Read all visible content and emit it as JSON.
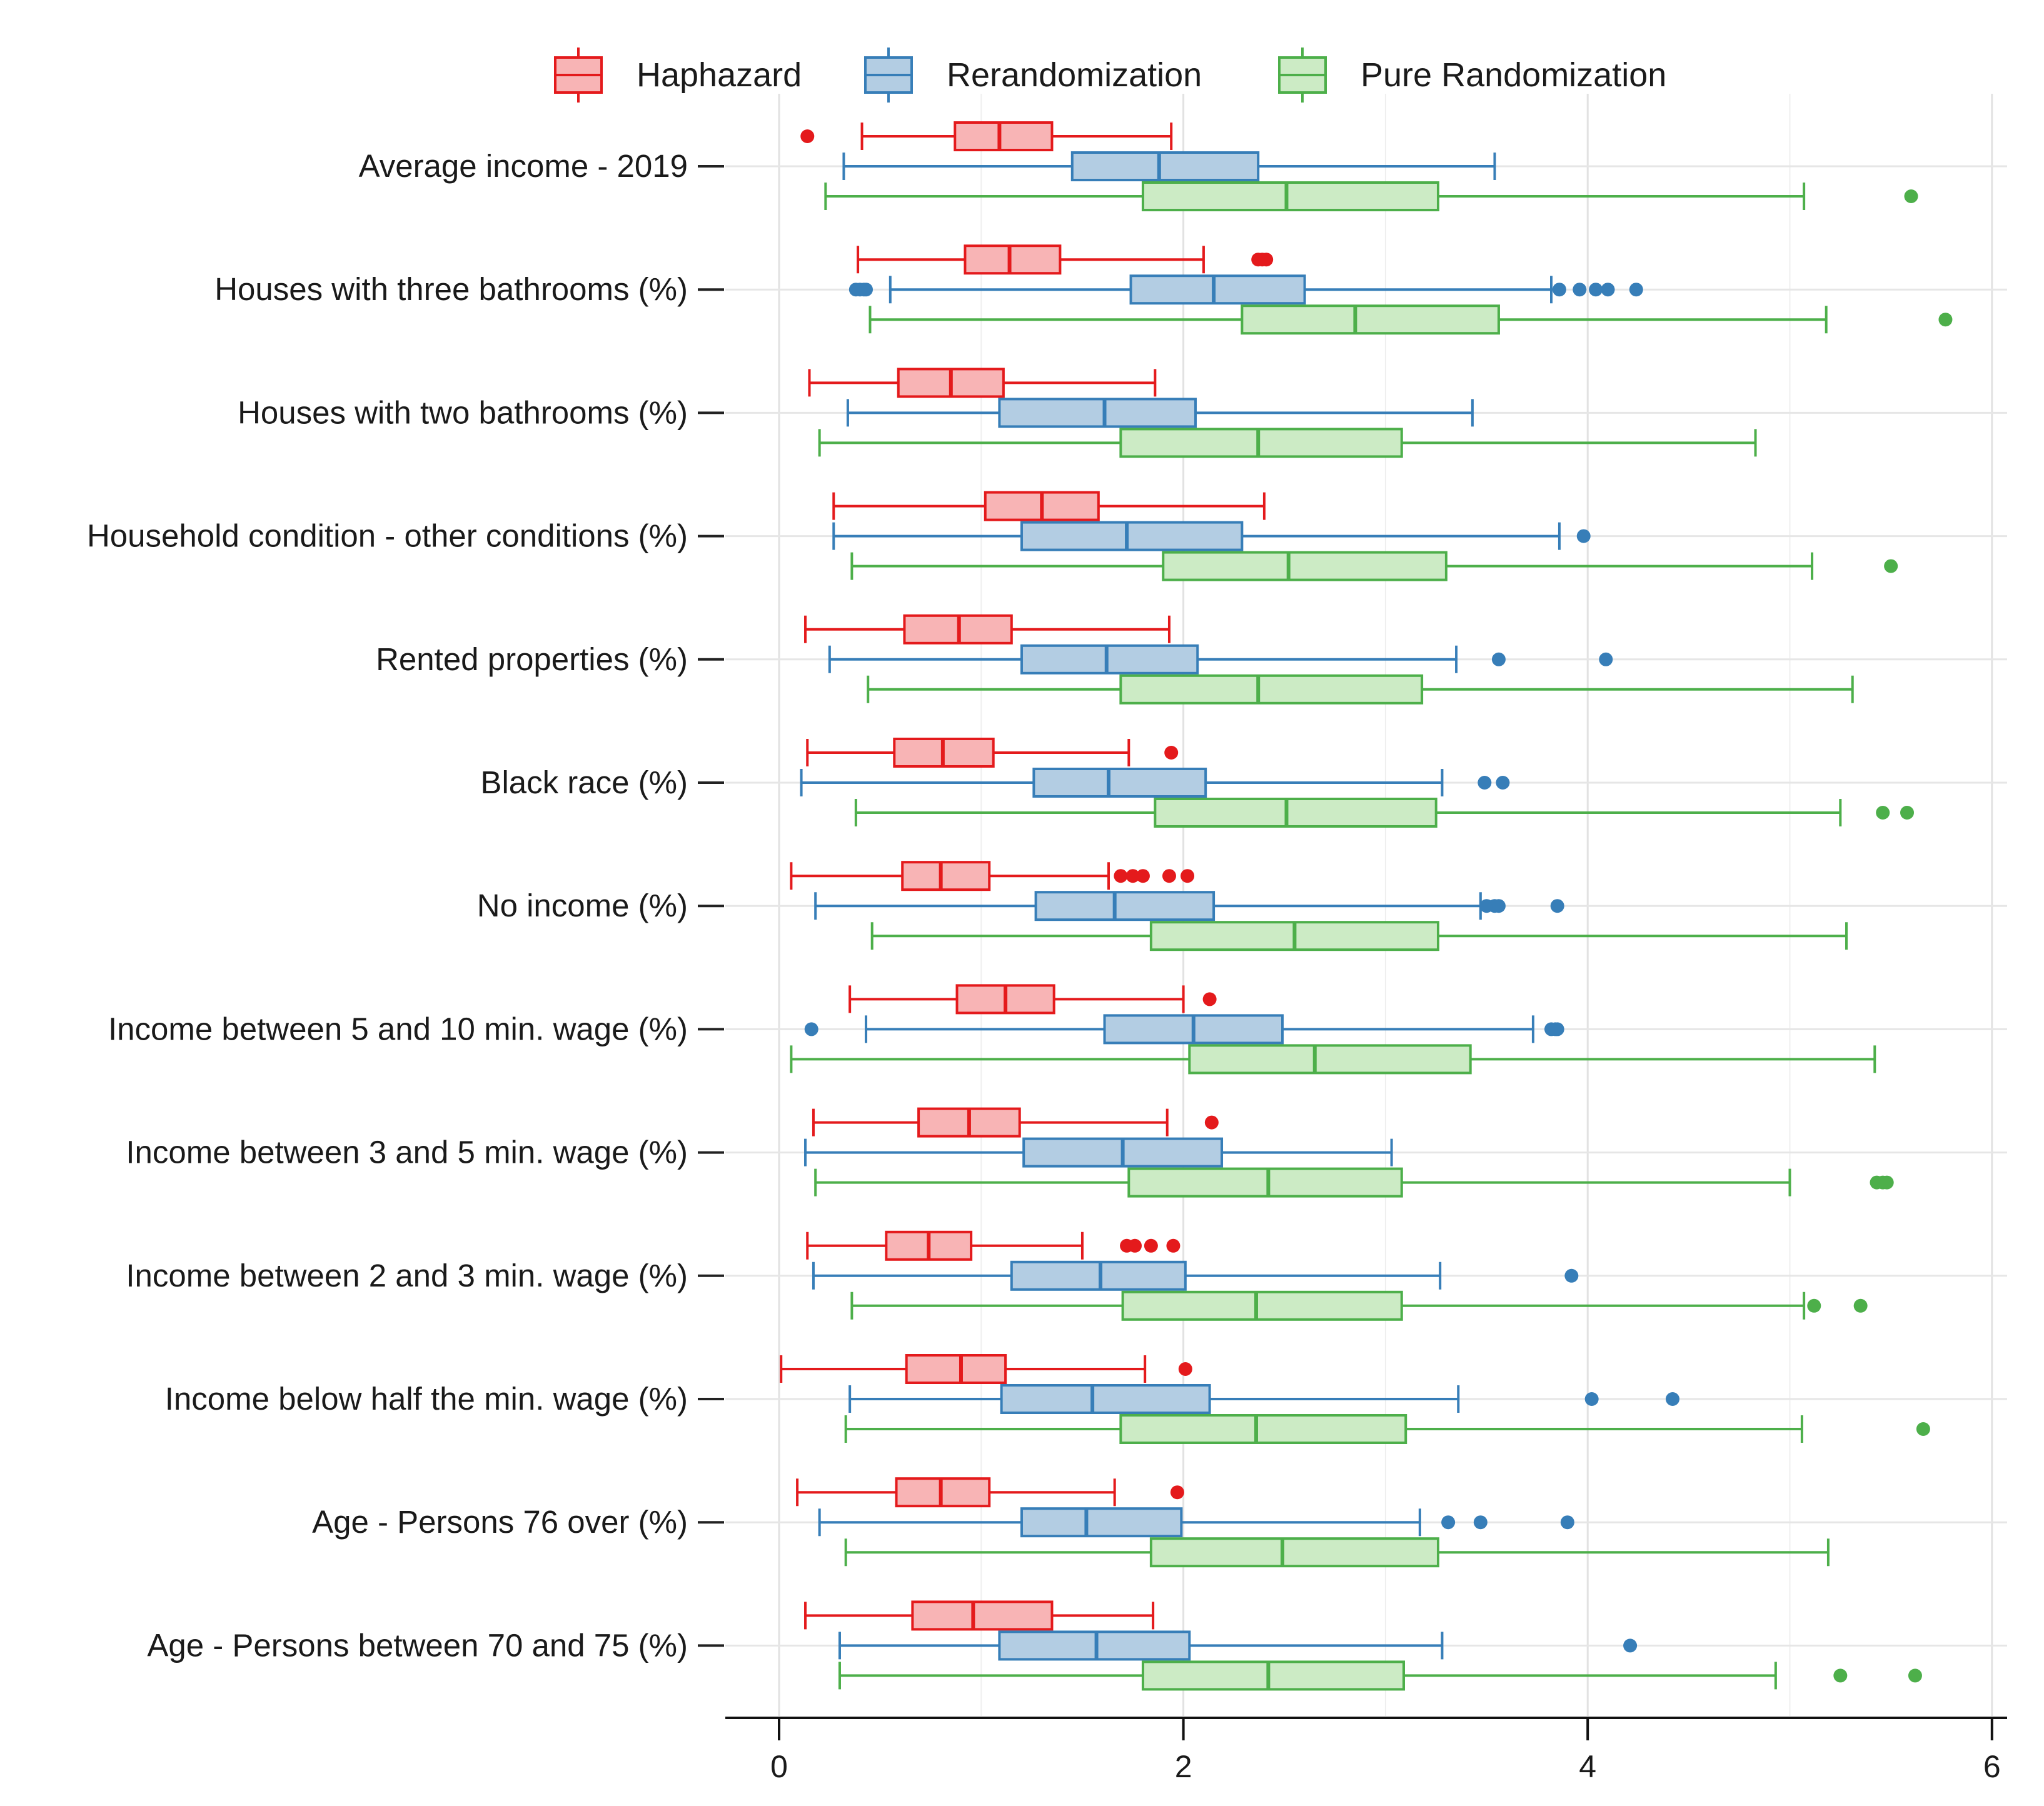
{
  "chart_data": {
    "type": "boxplot",
    "orientation": "horizontal",
    "title": "",
    "xlabel": "",
    "ylabel": "",
    "xlim": [
      0,
      6
    ],
    "xticks": [
      "0",
      "2",
      "4",
      "6"
    ],
    "xtick_values": [
      0,
      2,
      4,
      6
    ],
    "grid": true,
    "legend_position": "top",
    "legend": [
      "Haphazard",
      "Rerandomization",
      "Pure Randomization"
    ],
    "series_colors": {
      "Haphazard": {
        "stroke": "#e41a1c",
        "fill": "#f8b4b5"
      },
      "Rerandomization": {
        "stroke": "#377eb8",
        "fill": "#b3cde3"
      },
      "Pure Randomization": {
        "stroke": "#4daf4a",
        "fill": "#ccebc5"
      }
    },
    "categories": [
      "Average income - 2019",
      "Houses with three bathrooms (%)",
      "Houses with two bathrooms (%)",
      "Household condition - other conditions (%)",
      "Rented properties (%)",
      "Black race (%)",
      "No income (%)",
      "Income between 5 and 10 min. wage (%)",
      "Income between 3 and 5 min. wage (%)",
      "Income between 2 and 3 min. wage (%)",
      "Income below half the min. wage (%)",
      "Age - Persons 76 over (%)",
      "Age - Persons between 70 and 75 (%)"
    ],
    "series": [
      {
        "name": "Haphazard",
        "boxes": [
          {
            "whislo": 0.41,
            "q1": 0.87,
            "med": 1.09,
            "q3": 1.35,
            "whishi": 1.94,
            "outliers": [
              0.14
            ]
          },
          {
            "whislo": 0.39,
            "q1": 0.92,
            "med": 1.14,
            "q3": 1.39,
            "whishi": 2.1,
            "outliers": [
              2.37,
              2.39,
              2.41
            ]
          },
          {
            "whislo": 0.15,
            "q1": 0.59,
            "med": 0.85,
            "q3": 1.11,
            "whishi": 1.86,
            "outliers": []
          },
          {
            "whislo": 0.27,
            "q1": 1.02,
            "med": 1.3,
            "q3": 1.58,
            "whishi": 2.4,
            "outliers": []
          },
          {
            "whislo": 0.13,
            "q1": 0.62,
            "med": 0.89,
            "q3": 1.15,
            "whishi": 1.93,
            "outliers": []
          },
          {
            "whislo": 0.14,
            "q1": 0.57,
            "med": 0.81,
            "q3": 1.06,
            "whishi": 1.73,
            "outliers": [
              1.94
            ]
          },
          {
            "whislo": 0.06,
            "q1": 0.61,
            "med": 0.8,
            "q3": 1.04,
            "whishi": 1.63,
            "outliers": [
              1.69,
              1.75,
              1.8,
              1.93,
              2.02
            ]
          },
          {
            "whislo": 0.35,
            "q1": 0.88,
            "med": 1.12,
            "q3": 1.36,
            "whishi": 2.0,
            "outliers": [
              2.13
            ]
          },
          {
            "whislo": 0.17,
            "q1": 0.69,
            "med": 0.94,
            "q3": 1.19,
            "whishi": 1.92,
            "outliers": [
              2.14
            ]
          },
          {
            "whislo": 0.14,
            "q1": 0.53,
            "med": 0.74,
            "q3": 0.95,
            "whishi": 1.5,
            "outliers": [
              1.72,
              1.76,
              1.84,
              1.95
            ]
          },
          {
            "whislo": 0.01,
            "q1": 0.63,
            "med": 0.9,
            "q3": 1.12,
            "whishi": 1.81,
            "outliers": [
              2.01
            ]
          },
          {
            "whislo": 0.09,
            "q1": 0.58,
            "med": 0.8,
            "q3": 1.04,
            "whishi": 1.66,
            "outliers": [
              1.97
            ]
          },
          {
            "whislo": 0.13,
            "q1": 0.66,
            "med": 0.96,
            "q3": 1.35,
            "whishi": 1.85,
            "outliers": []
          }
        ]
      },
      {
        "name": "Rerandomization",
        "boxes": [
          {
            "whislo": 0.32,
            "q1": 1.45,
            "med": 1.88,
            "q3": 2.37,
            "whishi": 3.54,
            "outliers": []
          },
          {
            "whislo": 0.55,
            "q1": 1.74,
            "med": 2.15,
            "q3": 2.6,
            "whishi": 3.82,
            "outliers": [
              0.38,
              0.4,
              0.42,
              0.43,
              3.86,
              3.96,
              4.04,
              4.1,
              4.24
            ]
          },
          {
            "whislo": 0.34,
            "q1": 1.09,
            "med": 1.61,
            "q3": 2.06,
            "whishi": 3.43,
            "outliers": []
          },
          {
            "whislo": 0.27,
            "q1": 1.2,
            "med": 1.72,
            "q3": 2.29,
            "whishi": 3.86,
            "outliers": [
              3.98
            ]
          },
          {
            "whislo": 0.25,
            "q1": 1.2,
            "med": 1.62,
            "q3": 2.07,
            "whishi": 3.35,
            "outliers": [
              3.56,
              4.09
            ]
          },
          {
            "whislo": 0.11,
            "q1": 1.26,
            "med": 1.63,
            "q3": 2.11,
            "whishi": 3.28,
            "outliers": [
              3.49,
              3.58
            ]
          },
          {
            "whislo": 0.18,
            "q1": 1.27,
            "med": 1.66,
            "q3": 2.15,
            "whishi": 3.47,
            "outliers": [
              3.5,
              3.54,
              3.56,
              3.85
            ]
          },
          {
            "whislo": 0.43,
            "q1": 1.61,
            "med": 2.05,
            "q3": 2.49,
            "whishi": 3.73,
            "outliers": [
              0.16,
              3.82,
              3.84,
              3.85
            ]
          },
          {
            "whislo": 0.13,
            "q1": 1.21,
            "med": 1.7,
            "q3": 2.19,
            "whishi": 3.03,
            "outliers": []
          },
          {
            "whislo": 0.17,
            "q1": 1.15,
            "med": 1.59,
            "q3": 2.01,
            "whishi": 3.27,
            "outliers": [
              3.92
            ]
          },
          {
            "whislo": 0.35,
            "q1": 1.1,
            "med": 1.55,
            "q3": 2.13,
            "whishi": 3.36,
            "outliers": [
              4.02,
              4.42
            ]
          },
          {
            "whislo": 0.2,
            "q1": 1.2,
            "med": 1.52,
            "q3": 1.99,
            "whishi": 3.17,
            "outliers": [
              3.31,
              3.47,
              3.9
            ]
          },
          {
            "whislo": 0.3,
            "q1": 1.09,
            "med": 1.57,
            "q3": 2.03,
            "whishi": 3.28,
            "outliers": [
              4.21
            ]
          }
        ]
      },
      {
        "name": "Pure Randomization",
        "boxes": [
          {
            "whislo": 0.23,
            "q1": 1.8,
            "med": 2.51,
            "q3": 3.26,
            "whishi": 5.07,
            "outliers": [
              5.6
            ]
          },
          {
            "whislo": 0.45,
            "q1": 2.29,
            "med": 2.85,
            "q3": 3.56,
            "whishi": 5.18,
            "outliers": [
              5.77
            ]
          },
          {
            "whislo": 0.2,
            "q1": 1.69,
            "med": 2.37,
            "q3": 3.08,
            "whishi": 4.83,
            "outliers": []
          },
          {
            "whislo": 0.36,
            "q1": 1.9,
            "med": 2.52,
            "q3": 3.3,
            "whishi": 5.11,
            "outliers": [
              5.5
            ]
          },
          {
            "whislo": 0.44,
            "q1": 1.69,
            "med": 2.37,
            "q3": 3.18,
            "whishi": 5.31,
            "outliers": []
          },
          {
            "whislo": 0.38,
            "q1": 1.86,
            "med": 2.51,
            "q3": 3.25,
            "whishi": 5.25,
            "outliers": [
              5.46,
              5.58
            ]
          },
          {
            "whislo": 0.46,
            "q1": 1.84,
            "med": 2.55,
            "q3": 3.26,
            "whishi": 5.28,
            "outliers": []
          },
          {
            "whislo": 0.06,
            "q1": 2.03,
            "med": 2.65,
            "q3": 3.42,
            "whishi": 5.42,
            "outliers": []
          },
          {
            "whislo": 0.18,
            "q1": 1.73,
            "med": 2.42,
            "q3": 3.08,
            "whishi": 5.0,
            "outliers": [
              5.43,
              5.46,
              5.48
            ]
          },
          {
            "whislo": 0.36,
            "q1": 1.7,
            "med": 2.36,
            "q3": 3.08,
            "whishi": 5.07,
            "outliers": [
              5.12,
              5.35
            ]
          },
          {
            "whislo": 0.33,
            "q1": 1.69,
            "med": 2.36,
            "q3": 3.1,
            "whishi": 5.06,
            "outliers": [
              5.66
            ]
          },
          {
            "whislo": 0.33,
            "q1": 1.84,
            "med": 2.49,
            "q3": 3.26,
            "whishi": 5.19,
            "outliers": []
          },
          {
            "whislo": 0.3,
            "q1": 1.8,
            "med": 2.42,
            "q3": 3.09,
            "whishi": 4.93,
            "outliers": [
              5.25,
              5.62
            ]
          }
        ]
      }
    ]
  }
}
